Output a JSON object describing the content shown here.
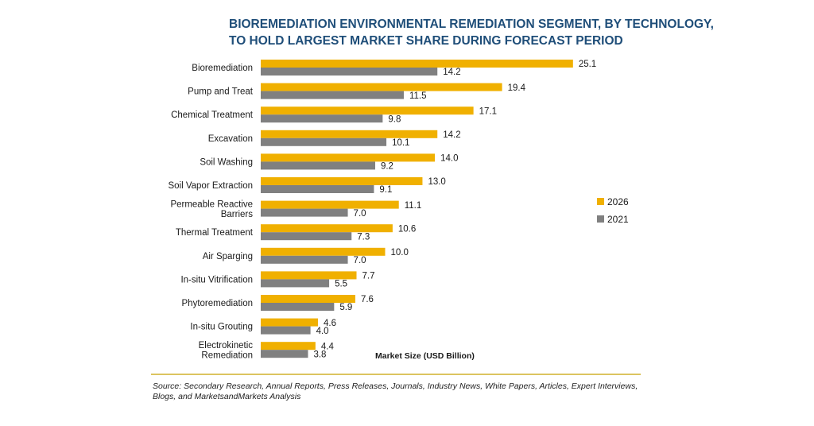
{
  "chart_data": {
    "type": "bar",
    "orientation": "horizontal",
    "title": "BIOREMEDIATION ENVIRONMENTAL REMEDIATION SEGMENT, BY TECHNOLOGY, TO HOLD LARGEST MARKET SHARE DURING FORECAST PERIOD",
    "title_lines": [
      "BIOREMEDIATION ENVIRONMENTAL REMEDIATION SEGMENT, BY TECHNOLOGY,",
      "TO HOLD LARGEST MARKET SHARE DURING FORECAST PERIOD"
    ],
    "xlabel": "Market Size (USD Billion)",
    "categories": [
      "Bioremediation",
      "Pump and Treat",
      "Chemical Treatment",
      "Excavation",
      "Soil Washing",
      "Soil Vapor Extraction",
      "Permeable Reactive Barriers",
      "Thermal Treatment",
      "Air Sparging",
      "In-situ Vitrification",
      "Phytoremediation",
      "In-situ Grouting",
      "Electrokinetic Remediation"
    ],
    "category_lines": [
      [
        "Bioremediation"
      ],
      [
        "Pump and Treat"
      ],
      [
        "Chemical Treatment"
      ],
      [
        "Excavation"
      ],
      [
        "Soil Washing"
      ],
      [
        "Soil Vapor Extraction"
      ],
      [
        "Permeable Reactive",
        "Barriers"
      ],
      [
        "Thermal Treatment"
      ],
      [
        "Air Sparging"
      ],
      [
        "In-situ Vitrification"
      ],
      [
        "Phytoremediation"
      ],
      [
        "In-situ Grouting"
      ],
      [
        "Electrokinetic",
        "Remediation"
      ]
    ],
    "series": [
      {
        "name": "2026",
        "color": "#f0b000",
        "values": [
          25.1,
          19.4,
          17.1,
          14.2,
          14.0,
          13.0,
          11.1,
          10.6,
          10.0,
          7.7,
          7.6,
          4.6,
          4.4
        ],
        "labels": [
          "25.1",
          "19.4",
          "17.1",
          "14.2",
          "14.0",
          "13.0",
          "11.1",
          "10.6",
          "10.0",
          "7.7",
          "7.6",
          "4.6",
          "4.4"
        ]
      },
      {
        "name": "2021",
        "color": "#808080",
        "values": [
          14.2,
          11.5,
          9.8,
          10.1,
          9.2,
          9.1,
          7.0,
          7.3,
          7.0,
          5.5,
          5.9,
          4.0,
          3.8
        ],
        "labels": [
          "14.2",
          "11.5",
          "9.8",
          "10.1",
          "9.2",
          "9.1",
          "7.0",
          "7.3",
          "7.0",
          "5.5",
          "5.9",
          "4.0",
          "3.8"
        ]
      }
    ],
    "grid": false,
    "legend": "right",
    "divider_color": "#c8a000"
  },
  "source_text": "Source: Secondary Research, Annual Reports, Press Releases, Journals, Industry News, White Papers, Articles, Expert Interviews, Blogs, and MarketsandMarkets Analysis"
}
